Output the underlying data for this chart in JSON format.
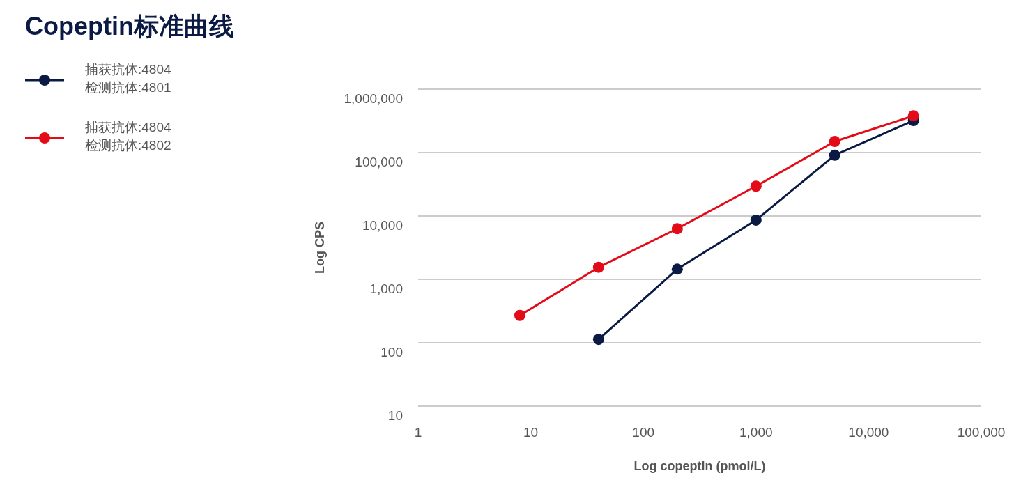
{
  "chart_data": {
    "type": "line",
    "title": "Copeptin标准曲线",
    "xlabel": "Log copeptin (pmol/L)",
    "ylabel": "Log CPS",
    "log": "xy",
    "xlim": [
      1,
      100000
    ],
    "xticks": [
      1,
      {
        "value": 10,
        "label": "10"
      },
      {
        "value": 100,
        "label": "100"
      },
      {
        "value": 1000,
        "label": "1,000"
      },
      {
        "value": 10000,
        "label": "10,000"
      },
      {
        "value": 100000,
        "label": "100,000"
      }
    ],
    "ylim": [
      10,
      1000000
    ],
    "yticks": [
      10,
      100,
      {
        "value": 1000,
        "label": "1,000"
      },
      {
        "value": 10000,
        "label": "10,000"
      },
      {
        "value": 100000,
        "label": "100,000"
      },
      {
        "value": 1000000,
        "label": "1,000,000"
      }
    ],
    "grid": "y",
    "legend": "top left",
    "marker": "circle",
    "line_style": "solid",
    "series": [
      {
        "name": "捕获抗体:4804\n检测抗体:4801",
        "color": "#0b1a44",
        "x": [
          40,
          200,
          1000,
          5000,
          25000
        ],
        "values": [
          113,
          1450,
          8600,
          91000,
          320000
        ]
      },
      {
        "name": "捕获抗体:4804\n检测抗体:4802",
        "color": "#e30b17",
        "x": [
          8,
          40,
          200,
          1000,
          5000,
          25000
        ],
        "values": [
          270,
          1550,
          6300,
          29500,
          150000,
          380000
        ]
      }
    ]
  }
}
